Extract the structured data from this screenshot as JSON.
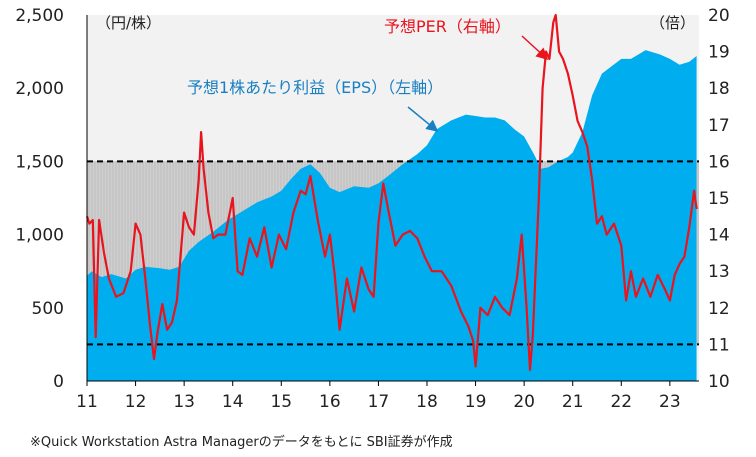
{
  "chart_data": {
    "type": "area+line",
    "x_ticks": [
      "11",
      "12",
      "13",
      "14",
      "15",
      "16",
      "17",
      "18",
      "19",
      "20",
      "21",
      "22",
      "23"
    ],
    "y_left_ticks": [
      "0",
      "500",
      "1,000",
      "1,500",
      "2,000",
      "2,500"
    ],
    "y_right_ticks": [
      "10",
      "11",
      "12",
      "13",
      "14",
      "15",
      "16",
      "17",
      "18",
      "19",
      "20"
    ],
    "y_left_unit": "（円/株）",
    "y_right_unit": "（倍）",
    "ylim_left": [
      0,
      2500
    ],
    "ylim_right": [
      10,
      20
    ],
    "xlim": [
      2011.0,
      2023.6
    ],
    "reference_lines_right_axis": [
      16,
      11
    ],
    "series": [
      {
        "name": "予想1株あたり利益（EPS）（左軸）",
        "axis": "left",
        "kind": "area",
        "color": "#00aeef",
        "x": [
          2011.0,
          2011.1,
          2011.3,
          2011.5,
          2011.8,
          2012.0,
          2012.2,
          2012.5,
          2012.7,
          2012.9,
          2013.1,
          2013.3,
          2013.6,
          2013.9,
          2014.2,
          2014.5,
          2014.8,
          2015.0,
          2015.2,
          2015.4,
          2015.6,
          2015.8,
          2016.0,
          2016.2,
          2016.5,
          2016.8,
          2017.0,
          2017.2,
          2017.5,
          2017.8,
          2018.0,
          2018.2,
          2018.5,
          2018.8,
          2019.0,
          2019.2,
          2019.4,
          2019.6,
          2019.8,
          2020.0,
          2020.2,
          2020.35,
          2020.5,
          2020.7,
          2020.9,
          2021.0,
          2021.2,
          2021.4,
          2021.6,
          2021.8,
          2022.0,
          2022.2,
          2022.5,
          2022.8,
          2023.0,
          2023.2,
          2023.4,
          2023.55
        ],
        "values": [
          720,
          750,
          710,
          730,
          700,
          760,
          780,
          770,
          760,
          780,
          890,
          950,
          1020,
          1100,
          1160,
          1220,
          1260,
          1300,
          1380,
          1450,
          1480,
          1420,
          1320,
          1290,
          1330,
          1320,
          1350,
          1400,
          1480,
          1550,
          1610,
          1720,
          1780,
          1820,
          1810,
          1800,
          1800,
          1780,
          1720,
          1670,
          1550,
          1450,
          1460,
          1500,
          1530,
          1560,
          1700,
          1950,
          2100,
          2150,
          2200,
          2200,
          2260,
          2230,
          2200,
          2160,
          2180,
          2220
        ]
      },
      {
        "name": "予想PER（右軸）",
        "axis": "right",
        "kind": "line",
        "color": "#e8141e",
        "x": [
          2011.0,
          2011.05,
          2011.12,
          2011.18,
          2011.25,
          2011.35,
          2011.45,
          2011.6,
          2011.75,
          2011.9,
          2012.0,
          2012.1,
          2012.2,
          2012.3,
          2012.38,
          2012.45,
          2012.55,
          2012.65,
          2012.75,
          2012.85,
          2013.0,
          2013.1,
          2013.2,
          2013.3,
          2013.35,
          2013.4,
          2013.5,
          2013.6,
          2013.7,
          2013.85,
          2014.0,
          2014.1,
          2014.2,
          2014.35,
          2014.5,
          2014.65,
          2014.8,
          2014.95,
          2015.1,
          2015.25,
          2015.4,
          2015.5,
          2015.6,
          2015.75,
          2015.9,
          2016.0,
          2016.1,
          2016.2,
          2016.35,
          2016.5,
          2016.65,
          2016.8,
          2016.9,
          2017.0,
          2017.1,
          2017.2,
          2017.35,
          2017.5,
          2017.65,
          2017.8,
          2017.95,
          2018.1,
          2018.3,
          2018.5,
          2018.7,
          2018.85,
          2018.95,
          2019.0,
          2019.1,
          2019.25,
          2019.4,
          2019.55,
          2019.7,
          2019.85,
          2019.95,
          2020.05,
          2020.12,
          2020.18,
          2020.22,
          2020.3,
          2020.38,
          2020.45,
          2020.52,
          2020.6,
          2020.65,
          2020.72,
          2020.8,
          2020.9,
          2021.0,
          2021.1,
          2021.2,
          2021.3,
          2021.4,
          2021.5,
          2021.6,
          2021.7,
          2021.85,
          2022.0,
          2022.1,
          2022.2,
          2022.3,
          2022.45,
          2022.6,
          2022.75,
          2022.9,
          2023.0,
          2023.1,
          2023.2,
          2023.3,
          2023.4,
          2023.5,
          2023.55
        ],
        "values": [
          14.5,
          14.3,
          14.4,
          11.2,
          14.4,
          13.5,
          12.8,
          12.3,
          12.4,
          13.0,
          14.3,
          14.0,
          12.8,
          11.5,
          10.6,
          11.3,
          12.1,
          11.4,
          11.6,
          12.2,
          14.6,
          14.2,
          14.0,
          15.5,
          16.8,
          15.8,
          14.6,
          13.9,
          14.0,
          14.0,
          15.0,
          13.0,
          12.9,
          13.9,
          13.4,
          14.2,
          13.1,
          14.0,
          13.6,
          14.6,
          15.2,
          15.1,
          15.6,
          14.4,
          13.4,
          14.0,
          12.9,
          11.4,
          12.8,
          11.9,
          13.1,
          12.5,
          12.3,
          14.3,
          15.4,
          14.7,
          13.7,
          14.0,
          14.1,
          13.9,
          13.4,
          13.0,
          13.0,
          12.6,
          11.9,
          11.5,
          11.1,
          10.4,
          12.0,
          11.8,
          12.3,
          12.0,
          11.8,
          12.8,
          14.0,
          12.0,
          10.3,
          11.3,
          12.5,
          14.9,
          18.0,
          19.0,
          18.8,
          19.8,
          20.0,
          19.0,
          18.8,
          18.4,
          17.8,
          17.1,
          16.8,
          16.4,
          15.5,
          14.3,
          14.5,
          14.0,
          14.3,
          13.7,
          12.2,
          13.0,
          12.3,
          12.8,
          12.3,
          12.9,
          12.5,
          12.2,
          12.9,
          13.2,
          13.4,
          14.2,
          15.2,
          14.7
        ]
      }
    ],
    "annotations": {
      "per_label": "予想PER（右軸）",
      "eps_label": "予想1株あたり利益（EPS）（左軸）"
    }
  },
  "footnote": "※Quick Workstation Astra Managerのデータをもとに SBI証券が作成"
}
